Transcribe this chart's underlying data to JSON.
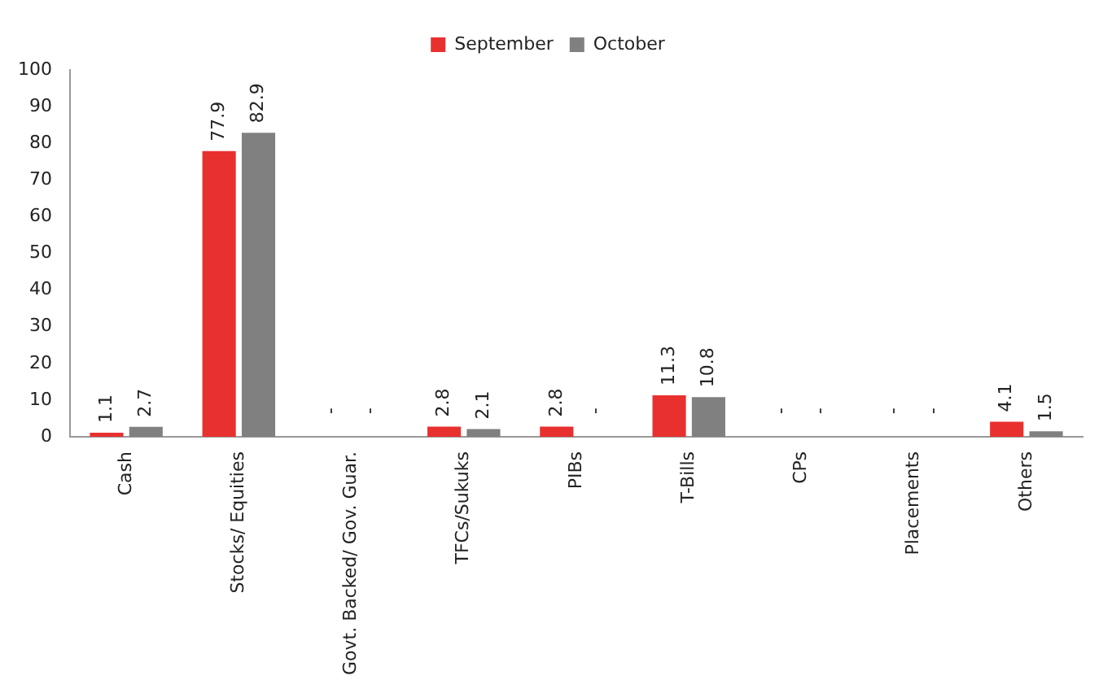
{
  "chart_data": {
    "type": "bar",
    "categories": [
      "Cash",
      "Stocks/ Equities",
      "Govt. Backed/ Gov. Guar.",
      "TFCs/Sukuks",
      "PIBs",
      "T-Bills",
      "CPs",
      "Placements",
      "Others"
    ],
    "series": [
      {
        "name": "September",
        "color": "#e8312f",
        "values": [
          1.1,
          77.9,
          null,
          2.8,
          2.8,
          11.3,
          null,
          null,
          4.1
        ],
        "value_labels": [
          "1.1",
          "77.9",
          "-",
          "2.8",
          "2.8",
          "11.3",
          "-",
          "-",
          "4.1"
        ]
      },
      {
        "name": "October",
        "color": "#808080",
        "values": [
          2.7,
          82.9,
          null,
          2.1,
          null,
          10.8,
          null,
          null,
          1.5
        ],
        "value_labels": [
          "2.7",
          "82.9",
          "-",
          "2.1",
          "-",
          "10.8",
          "-",
          "-",
          "1.5"
        ]
      }
    ],
    "ylim": [
      0,
      100
    ],
    "yticks": [
      0,
      10,
      20,
      30,
      40,
      50,
      60,
      70,
      80,
      90,
      100
    ],
    "grid": false,
    "legend": "top"
  }
}
